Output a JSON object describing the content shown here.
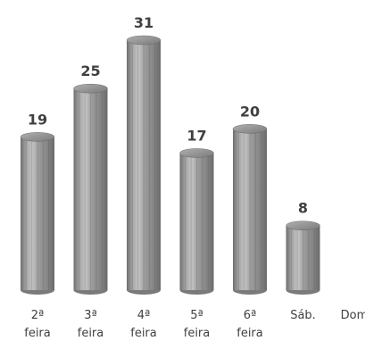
{
  "chart_data": {
    "type": "bar",
    "title": "",
    "xlabel": "",
    "ylabel": "",
    "categories": [
      [
        "2ª",
        "feira"
      ],
      [
        "3ª",
        "feira"
      ],
      [
        "4ª",
        "feira"
      ],
      [
        "5ª",
        "feira"
      ],
      [
        "6ª",
        "feira"
      ],
      [
        "Sáb."
      ],
      [
        "Dom."
      ]
    ],
    "values": [
      19,
      25,
      31,
      17,
      20,
      8,
      null
    ],
    "value_labels": [
      "19",
      "25",
      "31",
      "17",
      "20",
      "8",
      ""
    ],
    "ylim": [
      0,
      31
    ],
    "grid": false,
    "legend": "none",
    "bar_shape": "cylinder",
    "colors": {
      "bar": "#9a9a9a",
      "bar_dark": "#6f6f6f",
      "bar_light": "#c4c4c4",
      "cap": "#8a8a8a",
      "cap_light": "#b0b0b0",
      "text": "#404040"
    }
  }
}
